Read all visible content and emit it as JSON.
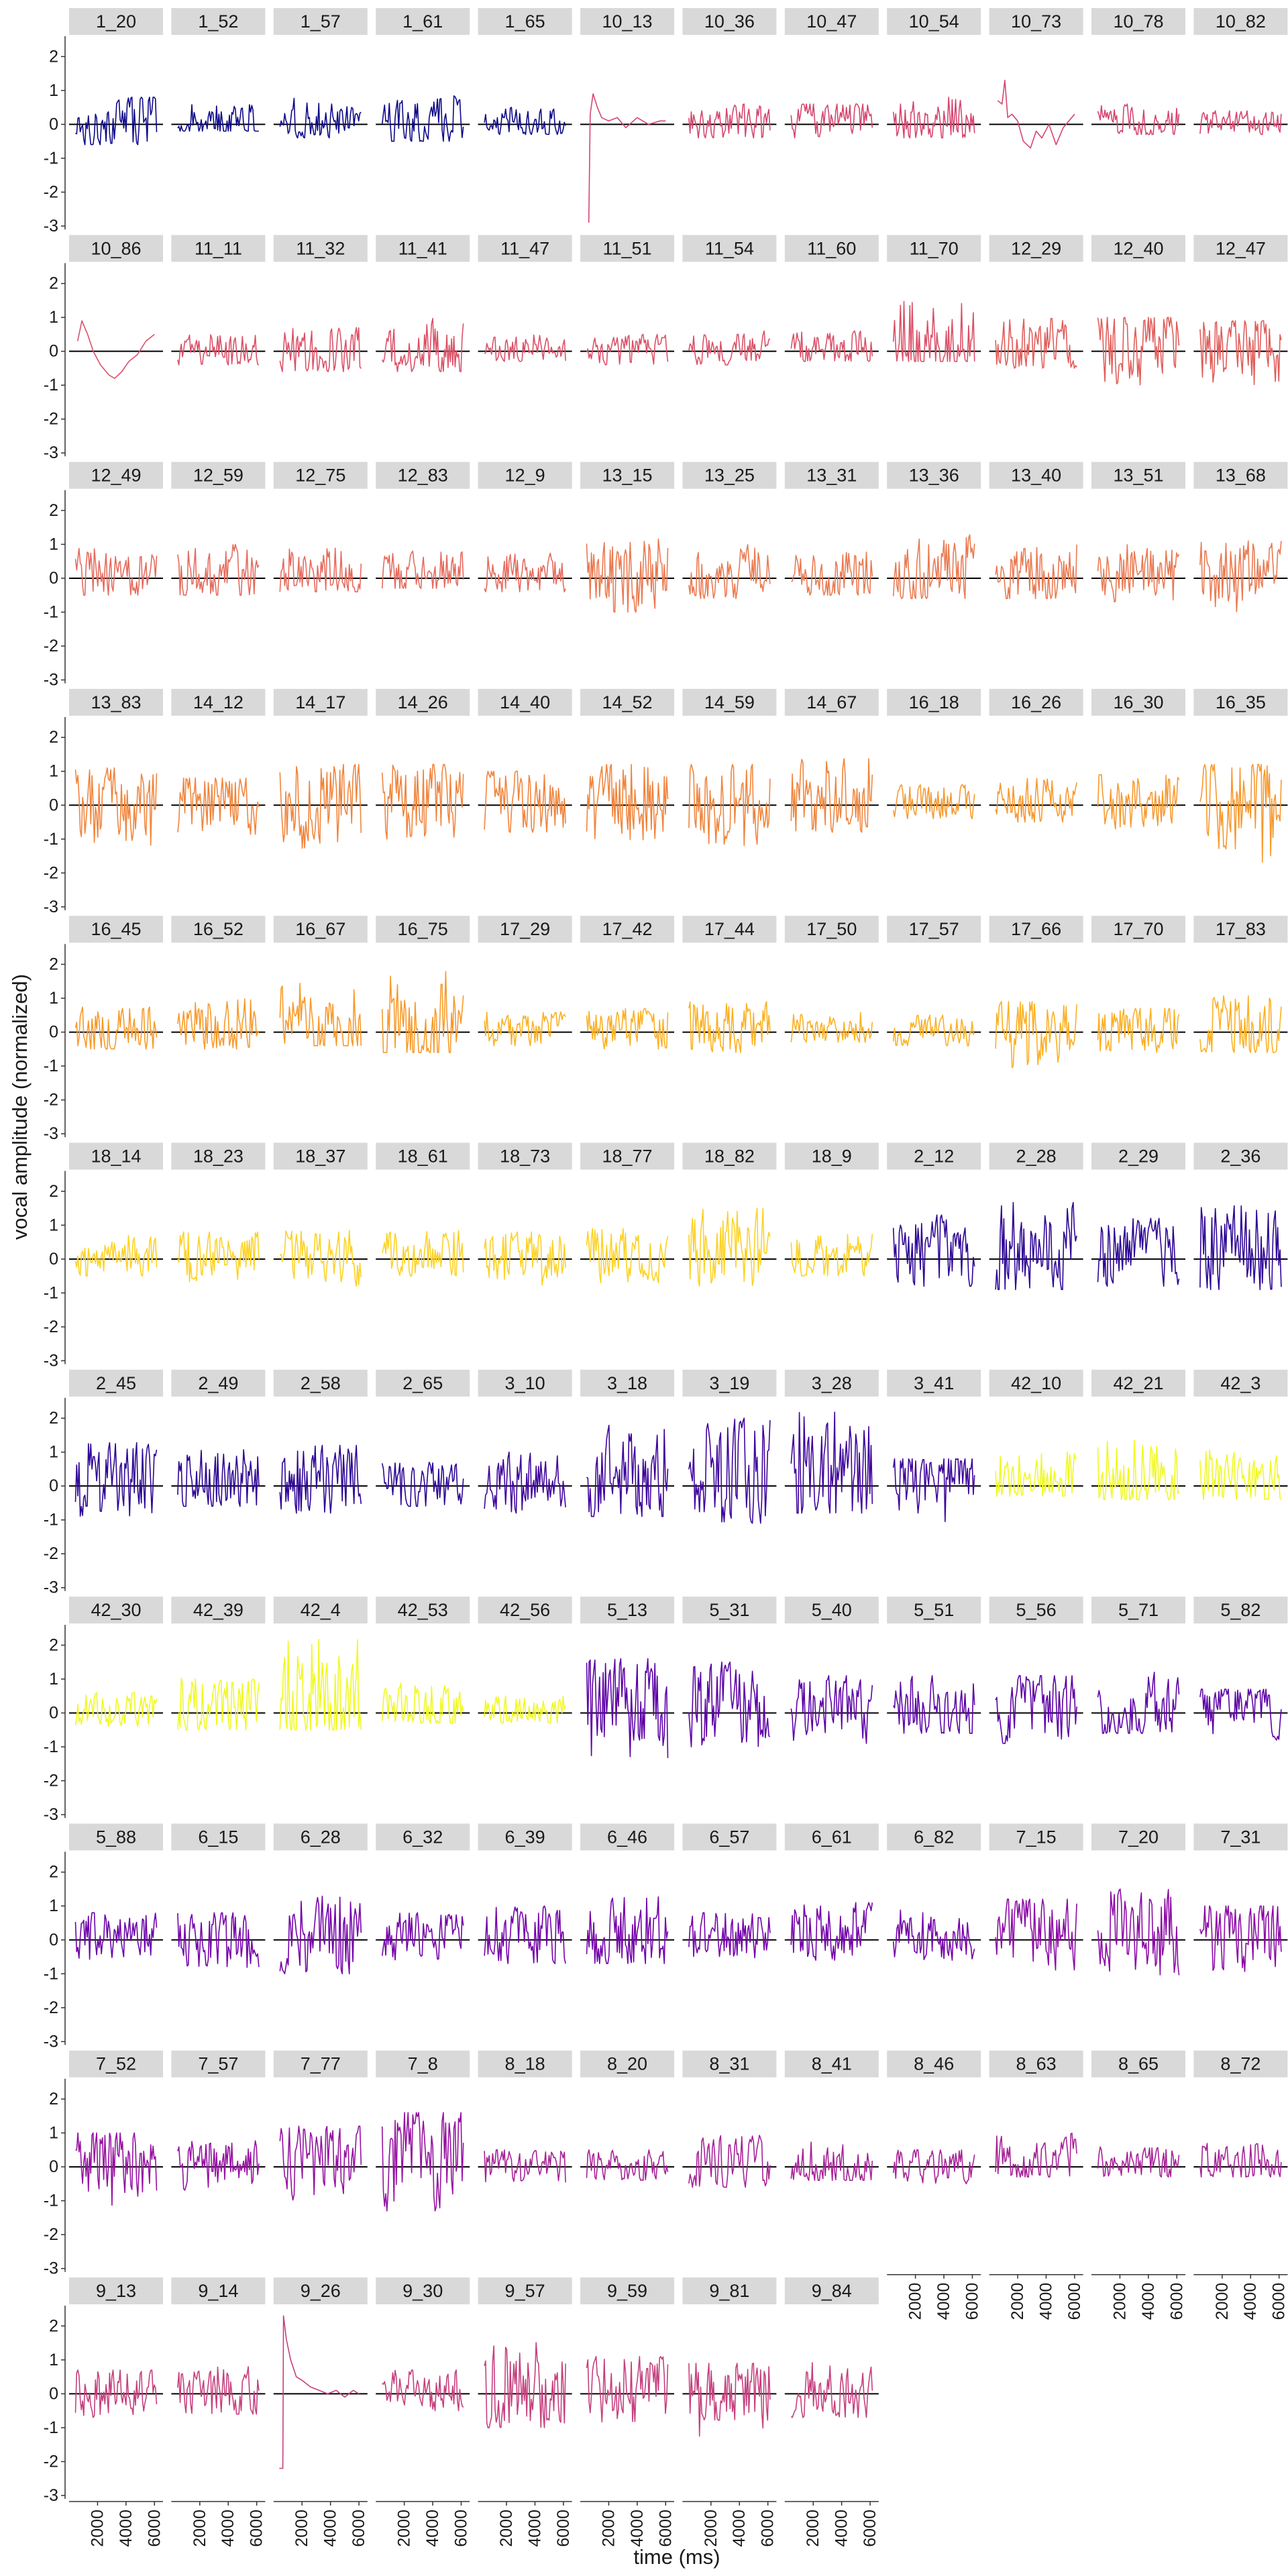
{
  "chart_data": {
    "type": "line",
    "layout": "small-multiples facet grid (12 columns)",
    "title": "",
    "xlabel": "time (ms)",
    "ylabel": "vocal amplitude (normalized)",
    "xlim": [
      0,
      6600
    ],
    "ylim": [
      -3.1,
      2.6
    ],
    "x_ticks": [
      2000,
      4000,
      6000
    ],
    "y_ticks": [
      -3,
      -2,
      -1,
      0,
      1,
      2
    ],
    "reference_line_y": 0,
    "grid": false,
    "legend": "none",
    "panels": [
      {
        "label": "1_20",
        "color": "#0d0887"
      },
      {
        "label": "1_52",
        "color": "#0d0887"
      },
      {
        "label": "1_57",
        "color": "#0d0887"
      },
      {
        "label": "1_61",
        "color": "#0d0887"
      },
      {
        "label": "1_65",
        "color": "#0d0887"
      },
      {
        "label": "10_13",
        "color": "#d5466f",
        "series": [
          [
            600,
            -2.9
          ],
          [
            700,
            0.3
          ],
          [
            900,
            0.9
          ],
          [
            1200,
            0.5
          ],
          [
            1500,
            0.2
          ],
          [
            2000,
            0.1
          ],
          [
            2600,
            0.2
          ],
          [
            3200,
            -0.1
          ],
          [
            4000,
            0.2
          ],
          [
            4800,
            0.0
          ],
          [
            5600,
            0.1
          ],
          [
            6000,
            0.1
          ]
        ]
      },
      {
        "label": "10_36",
        "color": "#d5466f"
      },
      {
        "label": "10_47",
        "color": "#d5466f"
      },
      {
        "label": "10_54",
        "color": "#d5466f"
      },
      {
        "label": "10_73",
        "color": "#d5466f",
        "series": [
          [
            600,
            0.7
          ],
          [
            900,
            0.6
          ],
          [
            1100,
            1.3
          ],
          [
            1300,
            0.2
          ],
          [
            1600,
            0.3
          ],
          [
            2000,
            0.1
          ],
          [
            2400,
            -0.5
          ],
          [
            2900,
            -0.7
          ],
          [
            3300,
            -0.2
          ],
          [
            3700,
            -0.4
          ],
          [
            4200,
            0.0
          ],
          [
            4700,
            -0.6
          ],
          [
            5200,
            -0.1
          ],
          [
            5600,
            0.1
          ],
          [
            6000,
            0.3
          ]
        ]
      },
      {
        "label": "10_78",
        "color": "#d5466f"
      },
      {
        "label": "10_82",
        "color": "#d5466f"
      },
      {
        "label": "10_86",
        "color": "#db5168",
        "series": [
          [
            600,
            0.3
          ],
          [
            900,
            0.9
          ],
          [
            1300,
            0.5
          ],
          [
            1700,
            0.0
          ],
          [
            2200,
            -0.4
          ],
          [
            2800,
            -0.7
          ],
          [
            3200,
            -0.8
          ],
          [
            3700,
            -0.6
          ],
          [
            4200,
            -0.3
          ],
          [
            4800,
            -0.1
          ],
          [
            5400,
            0.3
          ],
          [
            6000,
            0.5
          ]
        ]
      },
      {
        "label": "11_11",
        "color": "#db5168"
      },
      {
        "label": "11_32",
        "color": "#db5168"
      },
      {
        "label": "11_41",
        "color": "#db5168"
      },
      {
        "label": "11_47",
        "color": "#db5168"
      },
      {
        "label": "11_51",
        "color": "#db5168"
      },
      {
        "label": "11_54",
        "color": "#db5168"
      },
      {
        "label": "11_60",
        "color": "#db5168"
      },
      {
        "label": "11_70",
        "color": "#db5168"
      },
      {
        "label": "12_29",
        "color": "#e05d5a"
      },
      {
        "label": "12_40",
        "color": "#e05d5a"
      },
      {
        "label": "12_47",
        "color": "#e05d5a"
      },
      {
        "label": "12_49",
        "color": "#e56b5d"
      },
      {
        "label": "12_59",
        "color": "#e56b5d"
      },
      {
        "label": "12_75",
        "color": "#e56b5d"
      },
      {
        "label": "12_83",
        "color": "#e56b5d"
      },
      {
        "label": "12_9",
        "color": "#e56b5d"
      },
      {
        "label": "13_15",
        "color": "#ea7a51"
      },
      {
        "label": "13_25",
        "color": "#ea7a51"
      },
      {
        "label": "13_31",
        "color": "#ea7a51"
      },
      {
        "label": "13_36",
        "color": "#ea7a51"
      },
      {
        "label": "13_40",
        "color": "#ea7a51"
      },
      {
        "label": "13_51",
        "color": "#ea7a51"
      },
      {
        "label": "13_68",
        "color": "#ea7a51"
      },
      {
        "label": "13_83",
        "color": "#f0853d"
      },
      {
        "label": "14_12",
        "color": "#f0853d"
      },
      {
        "label": "14_17",
        "color": "#f0853d"
      },
      {
        "label": "14_26",
        "color": "#f0853d"
      },
      {
        "label": "14_40",
        "color": "#f0853d"
      },
      {
        "label": "14_52",
        "color": "#f0853d"
      },
      {
        "label": "14_59",
        "color": "#f0853d"
      },
      {
        "label": "14_67",
        "color": "#f0853d"
      },
      {
        "label": "16_18",
        "color": "#f7992e"
      },
      {
        "label": "16_26",
        "color": "#f7992e"
      },
      {
        "label": "16_30",
        "color": "#f7992e"
      },
      {
        "label": "16_35",
        "color": "#f7992e"
      },
      {
        "label": "16_45",
        "color": "#f89a2a"
      },
      {
        "label": "16_52",
        "color": "#f89a2a"
      },
      {
        "label": "16_67",
        "color": "#f89a2a"
      },
      {
        "label": "16_75",
        "color": "#f89a2a"
      },
      {
        "label": "17_29",
        "color": "#fbb022"
      },
      {
        "label": "17_42",
        "color": "#fbb022"
      },
      {
        "label": "17_44",
        "color": "#fbb022"
      },
      {
        "label": "17_50",
        "color": "#fbb022"
      },
      {
        "label": "17_57",
        "color": "#fbb022"
      },
      {
        "label": "17_66",
        "color": "#fbb022"
      },
      {
        "label": "17_70",
        "color": "#fbb022"
      },
      {
        "label": "17_83",
        "color": "#fbb022"
      },
      {
        "label": "18_14",
        "color": "#fcd225"
      },
      {
        "label": "18_23",
        "color": "#fcd225"
      },
      {
        "label": "18_37",
        "color": "#fcd225"
      },
      {
        "label": "18_61",
        "color": "#fcd225"
      },
      {
        "label": "18_73",
        "color": "#fcd225"
      },
      {
        "label": "18_77",
        "color": "#fcd225"
      },
      {
        "label": "18_82",
        "color": "#fcd225"
      },
      {
        "label": "18_9",
        "color": "#fcd225"
      },
      {
        "label": "2_12",
        "color": "#2c0594"
      },
      {
        "label": "2_28",
        "color": "#2c0594"
      },
      {
        "label": "2_29",
        "color": "#2c0594"
      },
      {
        "label": "2_36",
        "color": "#2c0594"
      },
      {
        "label": "2_45",
        "color": "#2c0594"
      },
      {
        "label": "2_49",
        "color": "#2c0594"
      },
      {
        "label": "2_58",
        "color": "#2c0594"
      },
      {
        "label": "2_65",
        "color": "#2c0594"
      },
      {
        "label": "3_10",
        "color": "#3e049c"
      },
      {
        "label": "3_18",
        "color": "#3e049c"
      },
      {
        "label": "3_19",
        "color": "#3e049c"
      },
      {
        "label": "3_28",
        "color": "#3e049c"
      },
      {
        "label": "3_41",
        "color": "#3e049c"
      },
      {
        "label": "42_10",
        "color": "#f0f921"
      },
      {
        "label": "42_21",
        "color": "#f0f921"
      },
      {
        "label": "42_3",
        "color": "#f0f921"
      },
      {
        "label": "42_30",
        "color": "#f0f921"
      },
      {
        "label": "42_39",
        "color": "#f0f921"
      },
      {
        "label": "42_4",
        "color": "#f0f921"
      },
      {
        "label": "42_53",
        "color": "#f0f921"
      },
      {
        "label": "42_56",
        "color": "#f0f921"
      },
      {
        "label": "5_13",
        "color": "#5c01a6"
      },
      {
        "label": "5_31",
        "color": "#5c01a6"
      },
      {
        "label": "5_40",
        "color": "#5c01a6"
      },
      {
        "label": "5_51",
        "color": "#5c01a6"
      },
      {
        "label": "5_56",
        "color": "#5c01a6"
      },
      {
        "label": "5_71",
        "color": "#5c01a6"
      },
      {
        "label": "5_82",
        "color": "#5c01a6"
      },
      {
        "label": "5_88",
        "color": "#6a00a8"
      },
      {
        "label": "6_15",
        "color": "#7301a8"
      },
      {
        "label": "6_28",
        "color": "#7301a8"
      },
      {
        "label": "6_32",
        "color": "#7301a8"
      },
      {
        "label": "6_39",
        "color": "#7301a8"
      },
      {
        "label": "6_46",
        "color": "#7301a8"
      },
      {
        "label": "6_57",
        "color": "#7301a8"
      },
      {
        "label": "6_61",
        "color": "#7301a8"
      },
      {
        "label": "6_82",
        "color": "#7301a8"
      },
      {
        "label": "7_15",
        "color": "#8b0aa5"
      },
      {
        "label": "7_20",
        "color": "#8b0aa5"
      },
      {
        "label": "7_31",
        "color": "#8b0aa5"
      },
      {
        "label": "7_52",
        "color": "#9511a1"
      },
      {
        "label": "7_57",
        "color": "#9511a1"
      },
      {
        "label": "7_77",
        "color": "#9511a1"
      },
      {
        "label": "7_8",
        "color": "#9511a1"
      },
      {
        "label": "8_18",
        "color": "#a72197"
      },
      {
        "label": "8_20",
        "color": "#a72197"
      },
      {
        "label": "8_31",
        "color": "#a72197"
      },
      {
        "label": "8_41",
        "color": "#a72197"
      },
      {
        "label": "8_46",
        "color": "#a72197"
      },
      {
        "label": "8_63",
        "color": "#a72197"
      },
      {
        "label": "8_65",
        "color": "#a72197"
      },
      {
        "label": "8_72",
        "color": "#a72197"
      },
      {
        "label": "9_13",
        "color": "#c5407e"
      },
      {
        "label": "9_14",
        "color": "#c5407e"
      },
      {
        "label": "9_26",
        "color": "#c5407e",
        "series": [
          [
            400,
            -2.2
          ],
          [
            650,
            -2.2
          ],
          [
            700,
            2.3
          ],
          [
            900,
            1.6
          ],
          [
            1200,
            1.0
          ],
          [
            1600,
            0.5
          ],
          [
            2000,
            0.4
          ],
          [
            2600,
            0.2
          ],
          [
            3200,
            0.1
          ],
          [
            3800,
            0.0
          ],
          [
            4400,
            0.1
          ],
          [
            5000,
            -0.1
          ],
          [
            5600,
            0.1
          ],
          [
            6000,
            0.0
          ]
        ]
      },
      {
        "label": "9_30",
        "color": "#c5407e"
      },
      {
        "label": "9_57",
        "color": "#c5407e"
      },
      {
        "label": "9_59",
        "color": "#c5407e"
      },
      {
        "label": "9_81",
        "color": "#c5407e"
      },
      {
        "label": "9_84",
        "color": "#c5407e"
      }
    ],
    "panel_ranges": [
      [
        -0.6,
        0.8
      ],
      [
        -0.2,
        0.7
      ],
      [
        -0.4,
        0.8
      ],
      [
        -0.5,
        0.9
      ],
      [
        -0.3,
        0.5
      ],
      null,
      [
        -0.4,
        0.6
      ],
      [
        -0.5,
        0.6
      ],
      [
        -0.4,
        0.8
      ],
      null,
      [
        -0.3,
        0.6
      ],
      [
        -0.3,
        0.4
      ],
      null,
      [
        -0.4,
        0.5
      ],
      [
        -0.6,
        0.7
      ],
      [
        -0.6,
        1.0
      ],
      [
        -0.3,
        0.5
      ],
      [
        -0.4,
        0.5
      ],
      [
        -0.4,
        0.6
      ],
      [
        -0.3,
        0.6
      ],
      [
        -0.3,
        1.5
      ],
      [
        -0.5,
        1.0
      ],
      [
        -1.1,
        1.0
      ],
      [
        -1.0,
        0.9
      ],
      [
        -0.5,
        0.9
      ],
      [
        -0.5,
        1.0
      ],
      [
        -0.4,
        0.9
      ],
      [
        -0.3,
        0.8
      ],
      [
        -0.4,
        0.8
      ],
      [
        -1.0,
        1.2
      ],
      [
        -0.6,
        1.0
      ],
      [
        -0.5,
        1.0
      ],
      [
        -0.6,
        1.3
      ],
      [
        -0.6,
        1.0
      ],
      [
        -0.7,
        1.0
      ],
      [
        -1.0,
        1.1
      ],
      [
        -1.2,
        1.1
      ],
      [
        -1.0,
        0.8
      ],
      [
        -1.4,
        1.2
      ],
      [
        -1.0,
        1.2
      ],
      [
        -0.8,
        1.0
      ],
      [
        -1.1,
        1.2
      ],
      [
        -1.2,
        1.2
      ],
      [
        -0.8,
        1.4
      ],
      [
        -0.4,
        0.6
      ],
      [
        -0.5,
        0.8
      ],
      [
        -0.7,
        0.9
      ],
      [
        -1.7,
        1.2
      ],
      [
        -0.5,
        0.8
      ],
      [
        -0.5,
        1.0
      ],
      [
        -0.4,
        1.5
      ],
      [
        -0.6,
        1.8
      ],
      [
        -0.4,
        0.6
      ],
      [
        -0.5,
        0.7
      ],
      [
        -0.6,
        0.9
      ],
      [
        -0.3,
        0.6
      ],
      [
        -0.4,
        0.5
      ],
      [
        -1.1,
        0.9
      ],
      [
        -0.6,
        0.7
      ],
      [
        -0.6,
        1.1
      ],
      [
        -0.5,
        0.7
      ],
      [
        -0.7,
        0.8
      ],
      [
        -0.8,
        0.9
      ],
      [
        -0.5,
        0.9
      ],
      [
        -0.8,
        0.8
      ],
      [
        -0.7,
        0.9
      ],
      [
        -0.8,
        1.5
      ],
      [
        -0.5,
        0.8
      ],
      [
        -0.8,
        1.3
      ],
      [
        -0.9,
        1.7
      ],
      [
        -0.8,
        1.2
      ],
      [
        -0.9,
        1.6
      ],
      [
        -0.9,
        1.3
      ],
      [
        -0.6,
        1.1
      ],
      [
        -0.8,
        1.2
      ],
      [
        -0.6,
        0.7
      ],
      [
        -0.8,
        1.0
      ],
      [
        -0.9,
        1.8
      ],
      [
        -1.1,
        2.0
      ],
      [
        -0.8,
        2.2
      ],
      [
        -1.1,
        0.8
      ],
      [
        -0.3,
        1.0
      ],
      [
        -0.4,
        1.4
      ],
      [
        -0.4,
        1.2
      ],
      [
        -0.4,
        0.6
      ],
      [
        -0.5,
        1.1
      ],
      [
        -0.5,
        2.2
      ],
      [
        -0.3,
        1.0
      ],
      [
        -0.3,
        0.6
      ],
      [
        -1.4,
        1.6
      ],
      [
        -1.0,
        1.5
      ],
      [
        -0.9,
        1.1
      ],
      [
        -0.6,
        1.1
      ],
      [
        -0.9,
        1.1
      ],
      [
        -0.6,
        1.2
      ],
      [
        -0.8,
        0.7
      ],
      [
        -0.6,
        0.8
      ],
      [
        -1.0,
        0.8
      ],
      [
        -1.0,
        1.3
      ],
      [
        -0.6,
        0.8
      ],
      [
        -0.7,
        1.0
      ],
      [
        -0.7,
        1.3
      ],
      [
        -0.6,
        0.8
      ],
      [
        -0.6,
        1.1
      ],
      [
        -0.6,
        0.9
      ],
      [
        -1.0,
        1.2
      ],
      [
        -1.3,
        1.5
      ],
      [
        -1.0,
        1.0
      ],
      [
        -1.2,
        1.0
      ],
      [
        -0.7,
        0.9
      ],
      [
        -1.0,
        1.2
      ],
      [
        -1.3,
        1.6
      ],
      [
        -0.5,
        0.5
      ],
      [
        -0.4,
        0.5
      ],
      [
        -0.6,
        1.0
      ],
      [
        -0.4,
        0.8
      ],
      [
        -0.5,
        0.5
      ],
      [
        -0.3,
        1.0
      ],
      [
        -0.3,
        0.6
      ],
      [
        -0.3,
        0.7
      ],
      [
        -0.7,
        0.7
      ],
      [
        -0.6,
        0.8
      ],
      null,
      [
        -0.5,
        0.7
      ],
      [
        -1.0,
        1.6
      ],
      [
        -0.9,
        1.1
      ],
      [
        -1.3,
        0.9
      ],
      [
        -0.7,
        1.0
      ]
    ]
  }
}
